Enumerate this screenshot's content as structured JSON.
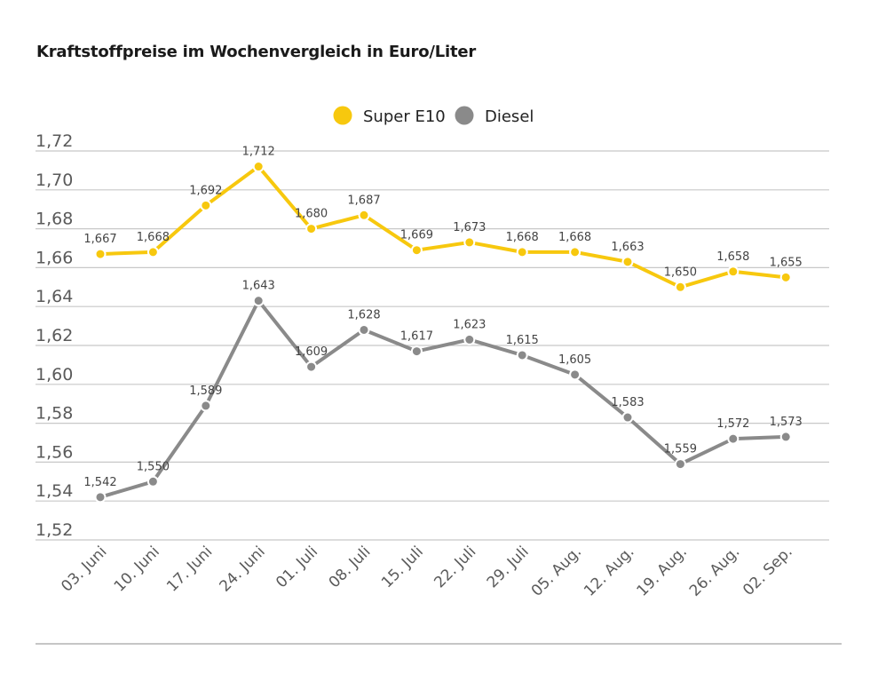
{
  "chart_data": {
    "type": "line",
    "title": "Kraftstoffpreise im Wochenvergleich in Euro/Liter",
    "categories": [
      "03. Juni",
      "10. Juni",
      "17. Juni",
      "24. Juni",
      "01. Juli",
      "08. Juli",
      "15. Juli",
      "22. Juli",
      "29. Juli",
      "05. Aug.",
      "12. Aug.",
      "19. Aug.",
      "26. Aug.",
      "02. Sep."
    ],
    "series": [
      {
        "name": "Super E10",
        "color": "#f7c80e",
        "values": [
          1.667,
          1.668,
          1.692,
          1.712,
          1.68,
          1.687,
          1.669,
          1.673,
          1.668,
          1.668,
          1.663,
          1.65,
          1.658,
          1.655
        ],
        "labels": [
          "1,667",
          "1,668",
          "1,692",
          "1,712",
          "1,680",
          "1,687",
          "1,669",
          "1,673",
          "1,668",
          "1,668",
          "1,663",
          "1,650",
          "1,658",
          "1,655"
        ]
      },
      {
        "name": "Diesel",
        "color": "#8a8a8a",
        "values": [
          1.542,
          1.55,
          1.589,
          1.643,
          1.609,
          1.628,
          1.617,
          1.623,
          1.615,
          1.605,
          1.583,
          1.559,
          1.572,
          1.573
        ],
        "labels": [
          "1,542",
          "1,550",
          "1,589",
          "1,643",
          "1,609",
          "1,628",
          "1,617",
          "1,623",
          "1,615",
          "1,605",
          "1,583",
          "1,559",
          "1,572",
          "1,573"
        ]
      }
    ],
    "y_ticks": [
      1.72,
      1.7,
      1.68,
      1.66,
      1.64,
      1.62,
      1.6,
      1.58,
      1.56,
      1.54,
      1.52
    ],
    "y_tick_labels": [
      "1,72",
      "1,70",
      "1,68",
      "1,66",
      "1,64",
      "1,62",
      "1,60",
      "1,58",
      "1,56",
      "1,54",
      "1,52"
    ],
    "ylim": [
      1.52,
      1.72
    ],
    "xlabel": "",
    "ylabel": "",
    "grid": true,
    "legend_position": "top-center"
  }
}
